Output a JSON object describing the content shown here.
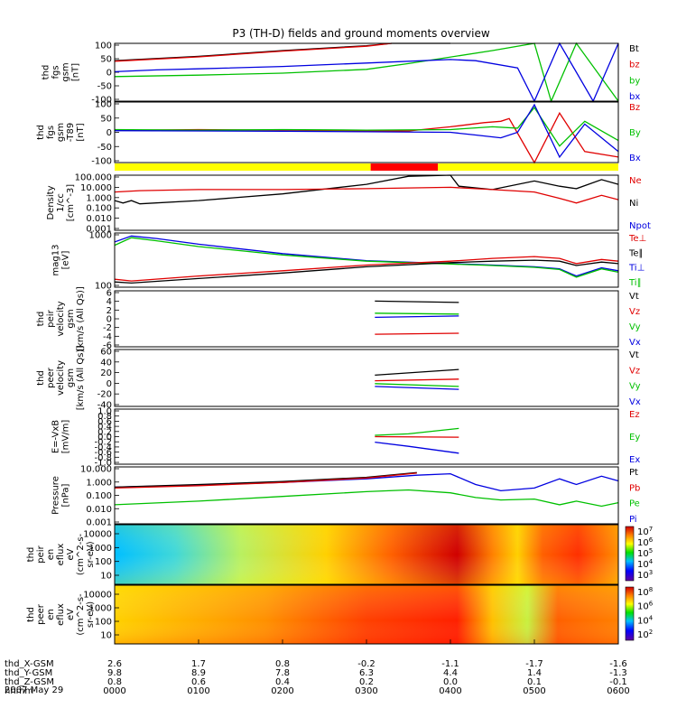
{
  "title": "P3 (TH-D) fields and ground moments overview",
  "date": "2007 May 29",
  "chart_data": [
    {
      "type": "line",
      "panel": "fgs",
      "ylabel": [
        "thd",
        "fgs",
        "gsm",
        "[nT]"
      ],
      "ticks": [
        "100",
        "50",
        "0",
        "-50",
        "-100"
      ],
      "ylim": [
        -100,
        100
      ],
      "legend": [
        {
          "label": "Bt",
          "color": "#000000"
        },
        {
          "label": "bz",
          "color": "#e00000"
        },
        {
          "label": "by",
          "color": "#00c000"
        },
        {
          "label": "bx",
          "color": "#0000e0"
        }
      ],
      "series": [
        {
          "label": "Bt",
          "color": "#000000",
          "x": [
            0,
            1,
            2,
            3,
            3.3,
            4
          ],
          "y": [
            40,
            55,
            75,
            92,
            100,
            100
          ]
        },
        {
          "label": "bz",
          "color": "#e00000",
          "x": [
            0,
            1,
            2,
            3,
            3.3
          ],
          "y": [
            38,
            53,
            73,
            90,
            100
          ]
        },
        {
          "label": "by",
          "color": "#00c000",
          "x": [
            0,
            1,
            2,
            3,
            3.5,
            4.5,
            5,
            5.2,
            5.5,
            6
          ],
          "y": [
            -15,
            -10,
            -3,
            10,
            30,
            75,
            100,
            -100,
            100,
            -100
          ]
        },
        {
          "label": "bx",
          "color": "#0000e0",
          "x": [
            0,
            0.5,
            1,
            2,
            3,
            4,
            4.3,
            4.8,
            5.0,
            5.3,
            5.7,
            6
          ],
          "y": [
            2,
            8,
            12,
            20,
            32,
            44,
            40,
            15,
            -100,
            100,
            -100,
            100
          ]
        }
      ]
    },
    {
      "type": "line",
      "panel": "fgs-t89",
      "ylabel": [
        "thd",
        "fgs",
        "gsm",
        "-T89",
        "[nT]"
      ],
      "ticks": [
        "100",
        "50",
        "0",
        "-50",
        "-100"
      ],
      "ylim": [
        -120,
        100
      ],
      "legend": [
        {
          "label": "Bz",
          "color": "#e00000"
        },
        {
          "label": "By",
          "color": "#00c000"
        },
        {
          "label": "Bx",
          "color": "#0000e0"
        }
      ],
      "series": [
        {
          "label": "Bz",
          "color": "#e00000",
          "x": [
            0,
            1,
            2,
            3,
            3.5,
            4,
            4.4,
            4.6,
            4.7,
            5.0,
            5.3,
            5.6,
            6
          ],
          "y": [
            -3,
            0,
            -2,
            -5,
            -5,
            10,
            25,
            30,
            40,
            -120,
            60,
            -80,
            -100
          ]
        },
        {
          "label": "By",
          "color": "#00c000",
          "x": [
            0,
            1,
            2,
            3,
            4,
            4.5,
            4.8,
            5.0,
            5.3,
            5.6,
            6
          ],
          "y": [
            0,
            -2,
            0,
            -2,
            0,
            10,
            5,
            80,
            -60,
            30,
            -40
          ]
        },
        {
          "label": "Bx",
          "color": "#0000e0",
          "x": [
            0,
            1,
            2,
            3,
            4,
            4.3,
            4.6,
            4.8,
            5.0,
            5.3,
            5.6,
            6
          ],
          "y": [
            -4,
            -5,
            -6,
            -8,
            -10,
            -20,
            -30,
            -10,
            90,
            -100,
            20,
            -80
          ]
        }
      ]
    },
    {
      "type": "line",
      "panel": "density",
      "ylabel": [
        "Density",
        "1/cc",
        "[cm^-3]"
      ],
      "ticks": [
        "100.000",
        "10.000",
        "1.000",
        "0.100",
        "0.010",
        "0.001"
      ],
      "ylim": [
        0.001,
        100
      ],
      "scale": "log",
      "legend": [
        {
          "label": "Ne",
          "color": "#e00000"
        },
        {
          "label": "Ni",
          "color": "#000000"
        },
        {
          "label": "Npot",
          "color": "#0000e0"
        }
      ],
      "series": [
        {
          "label": "Ni",
          "color": "#000000",
          "x": [
            0,
            0.1,
            0.2,
            0.3,
            1,
            2,
            3,
            3.5,
            4.0,
            4.1,
            4.5,
            5.0,
            5.3,
            5.5,
            5.8,
            6
          ],
          "y": [
            0.5,
            0.3,
            0.5,
            0.25,
            0.5,
            2,
            15,
            80,
            100,
            10,
            5,
            30,
            10,
            6,
            40,
            15
          ]
        },
        {
          "label": "Ne",
          "color": "#e00000",
          "x": [
            0,
            0.3,
            1,
            2,
            3,
            4,
            4.5,
            5.0,
            5.3,
            5.5,
            5.8,
            6
          ],
          "y": [
            3,
            4,
            5,
            5,
            6,
            8,
            5,
            3,
            0.8,
            0.3,
            1.5,
            0.6
          ]
        }
      ]
    },
    {
      "type": "line",
      "panel": "temperature",
      "ylabel": [
        "mag13",
        "[eV]"
      ],
      "ticks": [
        "1000",
        "100"
      ],
      "ylim": [
        30,
        6000
      ],
      "scale": "log",
      "legend": [
        {
          "label": "Te⊥",
          "color": "#e00000"
        },
        {
          "label": "Te∥",
          "color": "#000000"
        },
        {
          "label": "Ti⊥",
          "color": "#0000e0"
        },
        {
          "label": "Ti∥",
          "color": "#00c000"
        }
      ],
      "series": [
        {
          "label": "Ti⊥",
          "color": "#0000e0",
          "x": [
            0,
            0.2,
            0.5,
            1,
            2,
            3,
            4,
            4.5,
            5.0,
            5.3,
            5.5,
            5.8,
            6
          ],
          "y": [
            2500,
            4500,
            3500,
            2000,
            800,
            400,
            300,
            260,
            220,
            180,
            90,
            200,
            150
          ]
        },
        {
          "label": "Ti∥",
          "color": "#00c000",
          "x": [
            0,
            0.2,
            0.5,
            1,
            2,
            3,
            4,
            4.5,
            5.0,
            5.3,
            5.5,
            5.8,
            6
          ],
          "y": [
            1800,
            3800,
            2800,
            1600,
            700,
            380,
            290,
            250,
            210,
            170,
            80,
            180,
            130
          ]
        },
        {
          "label": "Te∥",
          "color": "#000000",
          "x": [
            0,
            0.2,
            1,
            2,
            3,
            4,
            4.5,
            5.0,
            5.3,
            5.5,
            5.8,
            6
          ],
          "y": [
            50,
            45,
            70,
            120,
            220,
            330,
            380,
            420,
            380,
            250,
            350,
            300
          ]
        },
        {
          "label": "Te⊥",
          "color": "#e00000",
          "x": [
            0,
            0.2,
            1,
            2,
            3,
            4,
            4.5,
            5.0,
            5.3,
            5.5,
            5.8,
            6
          ],
          "y": [
            65,
            55,
            90,
            150,
            260,
            380,
            500,
            600,
            500,
            300,
            450,
            380
          ]
        }
      ]
    },
    {
      "type": "line",
      "panel": "peir-velocity",
      "ylabel": [
        "thd",
        "peir",
        "velocity",
        "gsm",
        "[km/s (All Qs)]"
      ],
      "ticks": [
        "6",
        "4",
        "2",
        "0",
        "-2",
        "-4",
        "-6"
      ],
      "ylim": [
        -6,
        6
      ],
      "legend": [
        {
          "label": "Vt",
          "color": "#000000"
        },
        {
          "label": "Vz",
          "color": "#e00000"
        },
        {
          "label": "Vy",
          "color": "#00c000"
        },
        {
          "label": "Vx",
          "color": "#0000e0"
        }
      ],
      "series": [
        {
          "label": "Vt",
          "color": "#000000",
          "x": [
            3.1,
            4.1
          ],
          "y": [
            3.8,
            3.5
          ]
        },
        {
          "label": "Vy",
          "color": "#00c000",
          "x": [
            3.1,
            4.1
          ],
          "y": [
            1.2,
            1.0
          ]
        },
        {
          "label": "Vx",
          "color": "#0000e0",
          "x": [
            3.1,
            4.1
          ],
          "y": [
            0.3,
            0.6
          ]
        },
        {
          "label": "Vz",
          "color": "#e00000",
          "x": [
            3.1,
            4.1
          ],
          "y": [
            -3.3,
            -3.1
          ]
        }
      ]
    },
    {
      "type": "line",
      "panel": "peer-velocity",
      "ylabel": [
        "thd",
        "peer",
        "velocity",
        "gsm",
        "[km/s (All Qs)]"
      ],
      "ticks": [
        "60",
        "40",
        "20",
        "0",
        "-20",
        "-40"
      ],
      "ylim": [
        -40,
        60
      ],
      "legend": [
        {
          "label": "Vt",
          "color": "#000000"
        },
        {
          "label": "Vz",
          "color": "#e00000"
        },
        {
          "label": "Vy",
          "color": "#00c000"
        },
        {
          "label": "Vx",
          "color": "#0000e0"
        }
      ],
      "series": [
        {
          "label": "Vt",
          "color": "#000000",
          "x": [
            3.1,
            4.1
          ],
          "y": [
            15,
            25
          ]
        },
        {
          "label": "Vz",
          "color": "#e00000",
          "x": [
            3.1,
            4.1
          ],
          "y": [
            5,
            8
          ]
        },
        {
          "label": "Vy",
          "color": "#00c000",
          "x": [
            3.1,
            4.1
          ],
          "y": [
            0,
            -5
          ]
        },
        {
          "label": "Vx",
          "color": "#0000e0",
          "x": [
            3.1,
            4.1
          ],
          "y": [
            -5,
            -10
          ]
        }
      ]
    },
    {
      "type": "line",
      "panel": "efield",
      "ylabel": [
        "E=-VxB",
        "[mV/m]"
      ],
      "ticks": [
        "1.0",
        "0.8",
        "0.6",
        "0.4",
        "0.2",
        "0.0",
        "-0.2",
        "-0.4",
        "-0.6",
        "-0.8",
        "-1.0"
      ],
      "ylim": [
        -1.0,
        1.0
      ],
      "legend": [
        {
          "label": "Ez",
          "color": "#e00000"
        },
        {
          "label": "Ey",
          "color": "#00c000"
        },
        {
          "label": "Ex",
          "color": "#0000e0"
        }
      ],
      "series": [
        {
          "label": "Ey",
          "color": "#00c000",
          "x": [
            3.1,
            3.5,
            4.1
          ],
          "y": [
            0.05,
            0.1,
            0.3
          ]
        },
        {
          "label": "Ez",
          "color": "#e00000",
          "x": [
            3.1,
            4.1
          ],
          "y": [
            0.0,
            -0.02
          ]
        },
        {
          "label": "Ex",
          "color": "#0000e0",
          "x": [
            3.1,
            3.5,
            4.1
          ],
          "y": [
            -0.2,
            -0.35,
            -0.6
          ]
        }
      ]
    },
    {
      "type": "line",
      "panel": "pressure",
      "ylabel": [
        "Pressure",
        "[nPa]"
      ],
      "ticks": [
        "10.000",
        "1.000",
        "0.100",
        "0.010",
        "0.001"
      ],
      "ylim": [
        0.0005,
        30
      ],
      "scale": "log",
      "legend": [
        {
          "label": "Pt",
          "color": "#000000"
        },
        {
          "label": "Pb",
          "color": "#e00000"
        },
        {
          "label": "Pe",
          "color": "#00c000"
        },
        {
          "label": "Pi",
          "color": "#0000e0"
        }
      ],
      "series": [
        {
          "label": "Pi",
          "color": "#0000e0",
          "x": [
            0,
            1,
            2,
            3,
            3.6,
            4.0,
            4.3,
            4.6,
            5.0,
            5.3,
            5.5,
            5.8,
            6
          ],
          "y": [
            0.6,
            0.9,
            1.5,
            3,
            6,
            8,
            1,
            0.3,
            0.5,
            3,
            1,
            5,
            2
          ]
        },
        {
          "label": "Pt",
          "color": "#000000",
          "x": [
            0,
            1,
            2,
            3,
            3.6
          ],
          "y": [
            0.6,
            1.0,
            1.8,
            4,
            10
          ]
        },
        {
          "label": "Pb",
          "color": "#e00000",
          "x": [
            0,
            1,
            2,
            3,
            3.6
          ],
          "y": [
            0.5,
            0.8,
            1.5,
            3.5,
            9
          ]
        },
        {
          "label": "Pe",
          "color": "#00c000",
          "x": [
            0,
            1,
            2,
            3,
            3.5,
            4.0,
            4.3,
            4.6,
            5.0,
            5.3,
            5.5,
            5.8,
            6
          ],
          "y": [
            0.02,
            0.04,
            0.1,
            0.25,
            0.35,
            0.2,
            0.08,
            0.05,
            0.06,
            0.02,
            0.04,
            0.015,
            0.03
          ]
        }
      ]
    },
    {
      "type": "heatmap",
      "panel": "peir-en-eflux",
      "ylabel": [
        "thd",
        "peir",
        "en",
        "eflux",
        "eV",
        "(cm^2-s-",
        "sr-eV)"
      ],
      "ticks": [
        "10000",
        "1000",
        "100",
        "10"
      ],
      "colorbar_ticks": [
        "10^7",
        "10^6",
        "10^5",
        "10^4",
        "10^3"
      ]
    },
    {
      "type": "heatmap",
      "panel": "peer-en-eflux",
      "ylabel": [
        "thd",
        "peer",
        "en",
        "eflux",
        "eV",
        "(cm^2-s-",
        "sr-eV)"
      ],
      "ticks": [
        "10000",
        "1000",
        "100",
        "10"
      ],
      "colorbar_ticks": [
        "10^8",
        "10^6",
        "10^4",
        "10^2"
      ]
    }
  ],
  "x_axis": {
    "rows": [
      {
        "label": "thd_X-GSM",
        "values": [
          "2.6",
          "1.7",
          "0.8",
          "-0.2",
          "-1.1",
          "-1.7",
          "-1.6"
        ]
      },
      {
        "label": "thd_Y-GSM",
        "values": [
          "9.8",
          "8.9",
          "7.8",
          "6.3",
          "4.4",
          "1.4",
          "-1.3"
        ]
      },
      {
        "label": "thd_Z-GSM",
        "values": [
          "0.8",
          "0.6",
          "0.4",
          "0.2",
          "0.0",
          "0.1",
          "-0.1"
        ]
      },
      {
        "label": "hhmm",
        "values": [
          "0000",
          "0100",
          "0200",
          "0300",
          "0400",
          "0500",
          "0600"
        ]
      }
    ]
  },
  "mode_bar": {
    "colors": [
      "#ffff00",
      "#ff0000",
      "#ffff00"
    ],
    "segments_hours": [
      [
        0,
        3.05
      ],
      [
        3.05,
        3.85
      ],
      [
        3.85,
        6
      ]
    ]
  }
}
